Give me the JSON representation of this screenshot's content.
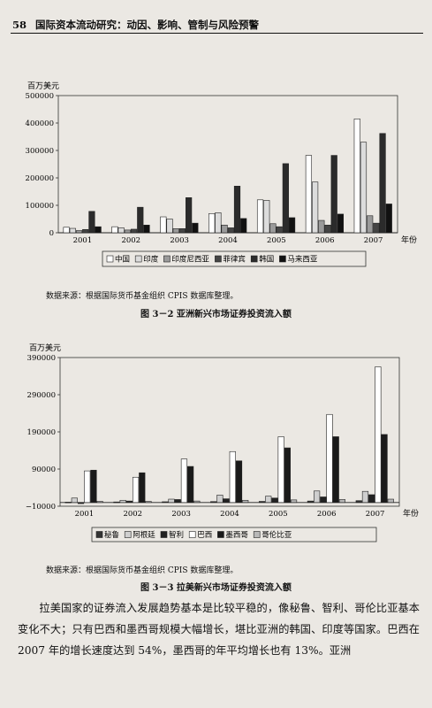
{
  "header": {
    "page_number": "58",
    "book_title": "国际资本流动研究：动因、影响、管制与风险预警"
  },
  "chart_data": [
    {
      "type": "bar",
      "unit_label": "百万美元",
      "year_label": "年份",
      "categories": [
        "2001",
        "2002",
        "2003",
        "2004",
        "2005",
        "2006",
        "2007"
      ],
      "yticks": [
        "0",
        "100000",
        "200000",
        "300000",
        "400000",
        "500000"
      ],
      "ylim": [
        0,
        500000
      ],
      "series": [
        {
          "name": "中国",
          "fill": "#ffffff",
          "values": [
            20000,
            22000,
            58000,
            70000,
            120000,
            282000,
            415000
          ]
        },
        {
          "name": "印度",
          "fill": "#dcdcdc",
          "values": [
            16000,
            18000,
            50000,
            73000,
            118000,
            185000,
            330000
          ]
        },
        {
          "name": "印度尼西亚",
          "fill": "#9a9a9a",
          "values": [
            8000,
            10000,
            15000,
            28000,
            33000,
            45000,
            62000
          ]
        },
        {
          "name": "菲律宾",
          "fill": "#444444",
          "values": [
            12000,
            13000,
            15000,
            18000,
            22000,
            28000,
            35000
          ]
        },
        {
          "name": "韩国",
          "fill": "#2b2b2b",
          "values": [
            78000,
            93000,
            128000,
            170000,
            252000,
            282000,
            362000
          ]
        },
        {
          "name": "马来西亚",
          "fill": "#111111",
          "values": [
            22000,
            28000,
            35000,
            52000,
            55000,
            68000,
            105000
          ]
        }
      ],
      "source": "数据来源：根据国际货币基金组织 CPIS 数据库整理。",
      "caption": "图 3－2   亚洲新兴市场证券投资流入额"
    },
    {
      "type": "bar",
      "unit_label": "百万美元",
      "year_label": "年份",
      "categories": [
        "2001",
        "2002",
        "2003",
        "2004",
        "2005",
        "2006",
        "2007"
      ],
      "yticks": [
        "−10000",
        "90000",
        "190000",
        "290000",
        "390000"
      ],
      "ylim": [
        -10000,
        390000
      ],
      "series": [
        {
          "name": "秘鲁",
          "fill": "#333333",
          "values": [
            1000,
            1500,
            2000,
            2500,
            3000,
            4000,
            5000
          ]
        },
        {
          "name": "阿根廷",
          "fill": "#cfcfcf",
          "values": [
            12000,
            6000,
            9000,
            20000,
            17000,
            31000,
            30000
          ]
        },
        {
          "name": "智利",
          "fill": "#222222",
          "values": [
            -3000,
            4000,
            8000,
            10000,
            12000,
            15000,
            21000
          ]
        },
        {
          "name": "巴西",
          "fill": "#ffffff",
          "values": [
            85000,
            68000,
            117000,
            137000,
            177000,
            237000,
            365000
          ]
        },
        {
          "name": "墨西哥",
          "fill": "#1a1a1a",
          "values": [
            87000,
            80000,
            97000,
            112000,
            147000,
            177000,
            183000
          ]
        },
        {
          "name": "哥伦比亚",
          "fill": "#b8b8b8",
          "values": [
            3000,
            3000,
            4000,
            6000,
            7000,
            8000,
            9000
          ]
        }
      ],
      "source": "数据来源：根据国际货币基金组织 CPIS 数据库整理。",
      "caption": "图 3－3   拉美新兴市场证券投资流入额"
    }
  ],
  "paragraph": "拉美国家的证券流入发展趋势基本是比较平稳的，像秘鲁、智利、哥伦比亚基本变化不大；只有巴西和墨西哥规模大幅增长，堪比亚洲的韩国、印度等国家。巴西在 2007 年的增长速度达到 54%，墨西哥的年平均增长也有 13%。亚洲"
}
